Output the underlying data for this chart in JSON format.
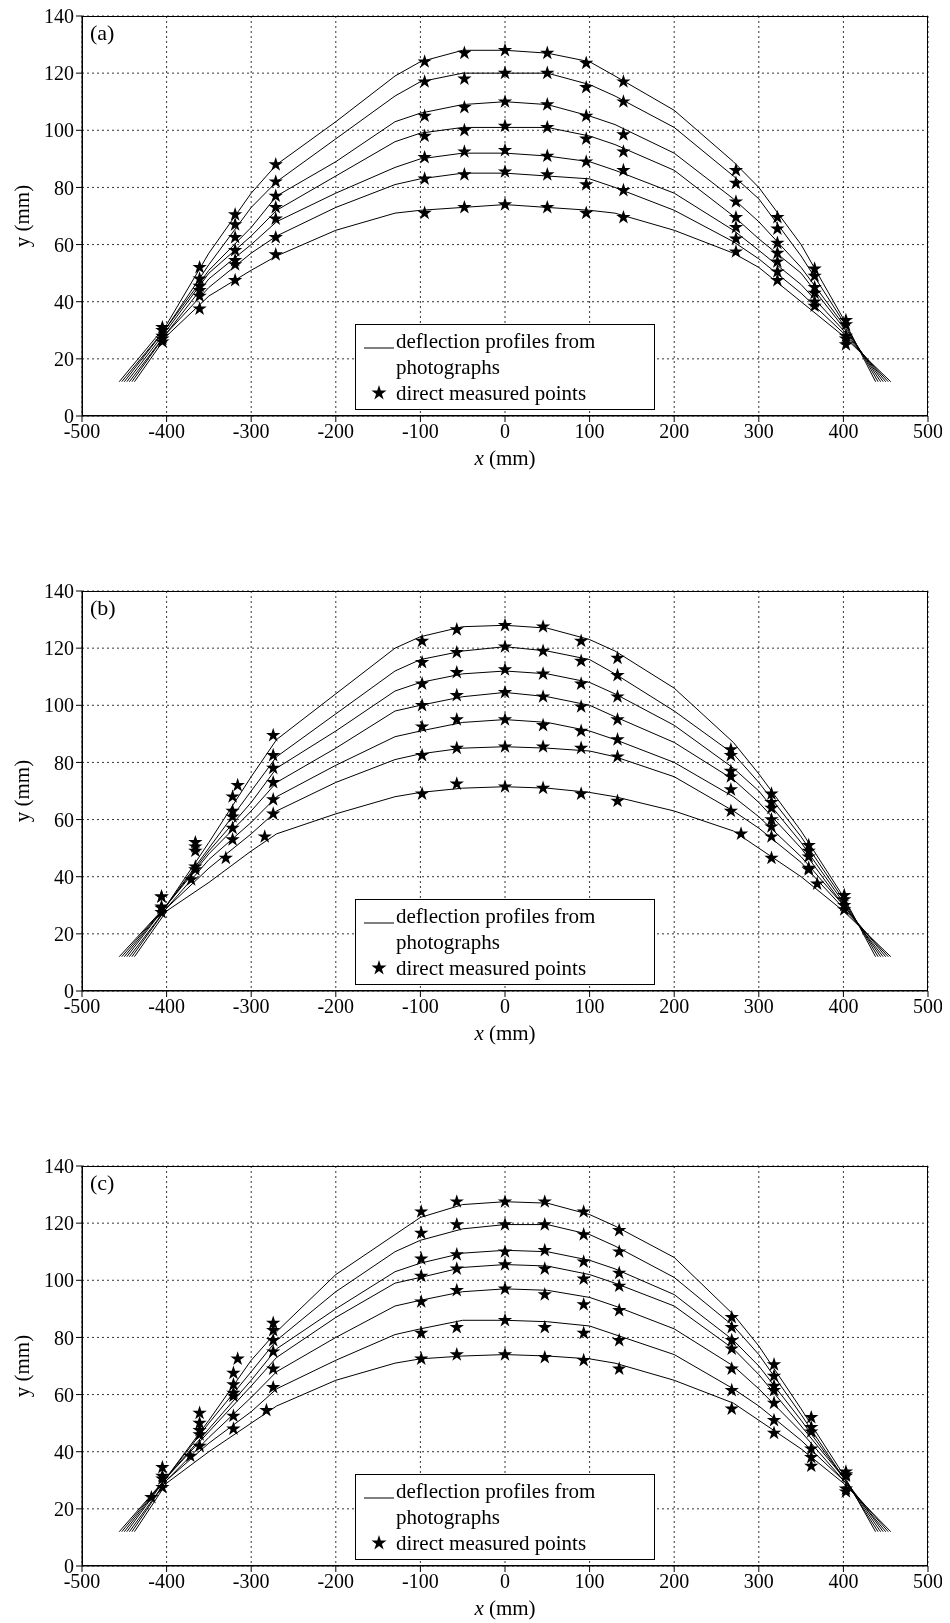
{
  "chart_data": [
    {
      "type": "line",
      "title": "(a)",
      "xlabel": "x (mm)",
      "ylabel": "y (mm)",
      "xlim": [
        -500,
        500
      ],
      "xticks": [
        -500,
        -400,
        -300,
        -200,
        -100,
        0,
        100,
        200,
        300,
        400,
        500
      ],
      "ylim": [
        0,
        140
      ],
      "yticks": [
        0,
        20,
        40,
        60,
        80,
        100,
        120,
        140
      ],
      "grid": true,
      "legend": "bottom",
      "series": [
        {
          "name": "deflection profiles from photographs",
          "color": "#000000",
          "line_style": "solid",
          "x": [
            -456,
            -400,
            -350,
            -300,
            -270,
            -200,
            -130,
            -100,
            -50,
            0,
            50,
            100,
            130,
            200,
            270,
            300,
            350,
            400,
            438
          ],
          "values": [
            12,
            32,
            57,
            78,
            88,
            103,
            119,
            124,
            128,
            128,
            127,
            124,
            119,
            107,
            89,
            80,
            60,
            34,
            12
          ]
        },
        {
          "color": "#000000",
          "line_style": "solid",
          "x": [
            -453,
            -400,
            -350,
            -300,
            -270,
            -200,
            -130,
            -100,
            -50,
            0,
            50,
            100,
            130,
            200,
            270,
            300,
            350,
            400,
            441
          ],
          "values": [
            12,
            31,
            53,
            73,
            82,
            97,
            112,
            117,
            120,
            120,
            120,
            116,
            112,
            101,
            84,
            76,
            56,
            33,
            12
          ]
        },
        {
          "color": "#000000",
          "line_style": "solid",
          "x": [
            -450,
            -400,
            -350,
            -300,
            -270,
            -200,
            -130,
            -100,
            -50,
            0,
            50,
            100,
            130,
            200,
            270,
            300,
            350,
            400,
            444
          ],
          "values": [
            12,
            31,
            51,
            66,
            77,
            89,
            103,
            106,
            109,
            110,
            109,
            105,
            102,
            92,
            76,
            68,
            52,
            32,
            12
          ]
        },
        {
          "color": "#000000",
          "line_style": "solid",
          "x": [
            -447,
            -400,
            -350,
            -300,
            -270,
            -200,
            -130,
            -100,
            -50,
            0,
            50,
            100,
            130,
            200,
            270,
            300,
            350,
            400,
            447
          ],
          "values": [
            12,
            30,
            50,
            63,
            72,
            84,
            96,
            99,
            101,
            101,
            101,
            98,
            95,
            86,
            70,
            62,
            50,
            31,
            12
          ]
        },
        {
          "color": "#000000",
          "line_style": "solid",
          "x": [
            -444,
            -400,
            -350,
            -300,
            -270,
            -200,
            -130,
            -100,
            -50,
            0,
            50,
            100,
            130,
            200,
            270,
            300,
            350,
            400,
            450
          ],
          "values": [
            12,
            29,
            48,
            60,
            68,
            78,
            87,
            90,
            92,
            92,
            91,
            89,
            86,
            78,
            65,
            58,
            46,
            30,
            12
          ]
        },
        {
          "color": "#000000",
          "line_style": "solid",
          "x": [
            -441,
            -400,
            -350,
            -300,
            -270,
            -200,
            -130,
            -100,
            -50,
            0,
            50,
            100,
            130,
            200,
            270,
            300,
            350,
            400,
            453
          ],
          "values": [
            12,
            29,
            45,
            57,
            63,
            73,
            81,
            83,
            85,
            85,
            84,
            83,
            80,
            72,
            61,
            55,
            43,
            29,
            12
          ]
        },
        {
          "color": "#000000",
          "line_style": "solid",
          "x": [
            -438,
            -400,
            -350,
            -300,
            -270,
            -200,
            -130,
            -100,
            -50,
            0,
            50,
            100,
            130,
            200,
            270,
            300,
            350,
            400,
            456
          ],
          "values": [
            12,
            28,
            42,
            51,
            56,
            65,
            71,
            72,
            73,
            74,
            73,
            72,
            71,
            65,
            57,
            52,
            40,
            28,
            12
          ]
        },
        {
          "name": "direct measured points",
          "type": "scatter",
          "marker": "star",
          "color": "#000000",
          "x": [
            -95,
            -95,
            -95,
            -95,
            -95,
            -95,
            -95,
            -48,
            -48,
            -48,
            -48,
            -48,
            -48,
            -48,
            0,
            0,
            0,
            0,
            0,
            0,
            0,
            50,
            50,
            50,
            50,
            50,
            50,
            50,
            96,
            96,
            96,
            96,
            96,
            96,
            96,
            140,
            140,
            140,
            140,
            140,
            140,
            140,
            -271,
            -271,
            -271,
            -271,
            -271,
            -271,
            -271,
            -319,
            -319,
            -319,
            -319,
            -319,
            -319,
            -319,
            -361,
            -361,
            -361,
            -361,
            -361,
            -361,
            -405,
            -405,
            -405,
            -405,
            -405,
            273,
            273,
            273,
            273,
            273,
            273,
            273,
            322,
            322,
            322,
            322,
            322,
            322,
            322,
            366,
            366,
            366,
            366,
            366,
            366,
            403,
            403,
            403,
            403,
            403
          ],
          "values": [
            124,
            117,
            105,
            98,
            90.5,
            83,
            71,
            127,
            118,
            108,
            100,
            92.5,
            84.5,
            73,
            128,
            120,
            110,
            101.5,
            93,
            85.5,
            74,
            127,
            120,
            109,
            101,
            91,
            84.5,
            73,
            123.5,
            115,
            105,
            97,
            89,
            81,
            71,
            117,
            110,
            98.5,
            92.5,
            86,
            79,
            69.5,
            88,
            82,
            77,
            73,
            69,
            62.5,
            56.5,
            70.5,
            67,
            62.5,
            58,
            54.5,
            53,
            47.5,
            52,
            48,
            45.5,
            44,
            42,
            37.5,
            31,
            30,
            28,
            27,
            26,
            86,
            81.5,
            75,
            69.5,
            66,
            62,
            57.5,
            69.5,
            65.5,
            60.5,
            57,
            54,
            50.5,
            47.5,
            51.5,
            49,
            45,
            43,
            40,
            38.5,
            33.5,
            32,
            28,
            27,
            25
          ]
        }
      ]
    },
    {
      "type": "line",
      "title": "(b)",
      "xlabel": "x (mm)",
      "ylabel": "y (mm)",
      "xlim": [
        -500,
        500
      ],
      "xticks": [
        -500,
        -400,
        -300,
        -200,
        -100,
        0,
        100,
        200,
        300,
        400,
        500
      ],
      "ylim": [
        0,
        140
      ],
      "yticks": [
        0,
        20,
        40,
        60,
        80,
        100,
        120,
        140
      ],
      "grid": true,
      "legend": "bottom",
      "series": [
        {
          "name": "deflection profiles from photographs",
          "color": "#000000",
          "line_style": "solid",
          "x": [
            -456,
            -400,
            -350,
            -300,
            -270,
            -200,
            -130,
            -100,
            -50,
            0,
            50,
            100,
            130,
            200,
            270,
            300,
            350,
            400,
            438
          ],
          "values": [
            12,
            30,
            52,
            75,
            88,
            104,
            120,
            124,
            127.5,
            128,
            127,
            123,
            119,
            106,
            87,
            76,
            56,
            33,
            12
          ]
        },
        {
          "color": "#000000",
          "line_style": "solid",
          "x": [
            -453,
            -400,
            -350,
            -300,
            -270,
            -200,
            -130,
            -100,
            -50,
            0,
            50,
            100,
            130,
            200,
            270,
            300,
            350,
            400,
            441
          ],
          "values": [
            12,
            30,
            50,
            70,
            82,
            97,
            112,
            116,
            119,
            120.5,
            119,
            116,
            111,
            98,
            83,
            73,
            54,
            32,
            12
          ]
        },
        {
          "color": "#000000",
          "line_style": "solid",
          "x": [
            -450,
            -400,
            -350,
            -300,
            -270,
            -200,
            -130,
            -100,
            -50,
            0,
            50,
            100,
            130,
            200,
            270,
            300,
            350,
            400,
            444
          ],
          "values": [
            12,
            30,
            49,
            66,
            78,
            91,
            105,
            108,
            111,
            112,
            111,
            108,
            104,
            93,
            78,
            70,
            52,
            31,
            12
          ]
        },
        {
          "color": "#000000",
          "line_style": "solid",
          "x": [
            -447,
            -400,
            -350,
            -300,
            -270,
            -200,
            -130,
            -100,
            -50,
            0,
            50,
            100,
            130,
            200,
            270,
            300,
            350,
            400,
            447
          ],
          "values": [
            12,
            30,
            48,
            63,
            73,
            85,
            98,
            100,
            103,
            104.5,
            103,
            100,
            96,
            87,
            74,
            66,
            50,
            30,
            12
          ]
        },
        {
          "color": "#000000",
          "line_style": "solid",
          "x": [
            -444,
            -400,
            -350,
            -300,
            -270,
            -200,
            -130,
            -100,
            -50,
            0,
            50,
            100,
            130,
            200,
            270,
            300,
            350,
            400,
            450
          ],
          "values": [
            12,
            29,
            46,
            59,
            68,
            79,
            89,
            91,
            94,
            95,
            94,
            91,
            88,
            80,
            68,
            61,
            47,
            30,
            12
          ]
        },
        {
          "color": "#000000",
          "line_style": "solid",
          "x": [
            -441,
            -400,
            -350,
            -300,
            -270,
            -200,
            -130,
            -100,
            -50,
            0,
            50,
            100,
            130,
            200,
            270,
            300,
            350,
            400,
            453
          ],
          "values": [
            12,
            29,
            43,
            55,
            63,
            73,
            81,
            83,
            85,
            85.5,
            85,
            84,
            82,
            75,
            63,
            57,
            45,
            29,
            12
          ]
        },
        {
          "color": "#000000",
          "line_style": "solid",
          "x": [
            -438,
            -400,
            -350,
            -300,
            -270,
            -200,
            -130,
            -100,
            -50,
            0,
            50,
            100,
            130,
            200,
            270,
            300,
            350,
            400,
            456
          ],
          "values": [
            12,
            28,
            38,
            49,
            55,
            62,
            68,
            69.5,
            71,
            71.5,
            71,
            69.5,
            68,
            63,
            56,
            50,
            40,
            28,
            12
          ]
        },
        {
          "name": "direct measured points",
          "type": "scatter",
          "marker": "star",
          "color": "#000000",
          "x": [
            -98,
            -98,
            -98,
            -98,
            -98,
            -98,
            -98,
            -57,
            -57,
            -57,
            -57,
            -57,
            -57,
            -57,
            0,
            0,
            0,
            0,
            0,
            0,
            0,
            45,
            45,
            45,
            45,
            45,
            45,
            45,
            90,
            90,
            90,
            90,
            90,
            90,
            90,
            133,
            133,
            133,
            133,
            133,
            133,
            133,
            -274,
            -274,
            -274,
            -274,
            -274,
            -274,
            -284,
            -316,
            -322,
            -322,
            -322,
            -322,
            -322,
            -330,
            -366,
            -366,
            -366,
            -366,
            -366,
            -371,
            -406,
            -406,
            -406,
            -406,
            -406,
            267,
            267,
            267,
            267,
            267,
            267,
            279,
            315,
            315,
            315,
            315,
            315,
            315,
            315,
            359,
            359,
            359,
            359,
            359,
            369,
            401,
            401,
            401,
            401
          ],
          "values": [
            122.5,
            115,
            107.5,
            100,
            92.5,
            82.5,
            69,
            126.5,
            118.5,
            111.5,
            103.5,
            95,
            85,
            72.5,
            128,
            120.5,
            112.5,
            104.5,
            95,
            85.5,
            71.5,
            127.5,
            119,
            111,
            103,
            93,
            85.5,
            71,
            122.5,
            115.5,
            107.5,
            99.5,
            91,
            85,
            69,
            116.5,
            110.5,
            103,
            95,
            88,
            82,
            66.5,
            89.5,
            82.5,
            78,
            73,
            67,
            62,
            54,
            72,
            68,
            63,
            61,
            57,
            53,
            46.5,
            52,
            50.5,
            49,
            43.5,
            42.5,
            39,
            33,
            33,
            29.5,
            29,
            27.5,
            84.5,
            82.5,
            77,
            75,
            70.5,
            63,
            55,
            69,
            66,
            64,
            60,
            57.5,
            54,
            46.5,
            51,
            49,
            47,
            43,
            42.5,
            37.5,
            33.5,
            32,
            30,
            28.5
          ]
        }
      ]
    },
    {
      "type": "line",
      "title": "(c)",
      "xlabel": "x (mm)",
      "ylabel": "y (mm)",
      "xlim": [
        -500,
        500
      ],
      "xticks": [
        -500,
        -400,
        -300,
        -200,
        -100,
        0,
        100,
        200,
        300,
        400,
        500
      ],
      "ylim": [
        0,
        140
      ],
      "yticks": [
        0,
        20,
        40,
        60,
        80,
        100,
        120,
        140
      ],
      "grid": true,
      "legend": "bottom",
      "series": [
        {
          "name": "deflection profiles from photographs",
          "color": "#000000",
          "line_style": "solid",
          "x": [
            -456,
            -400,
            -350,
            -300,
            -270,
            -200,
            -130,
            -100,
            -50,
            0,
            50,
            100,
            130,
            200,
            270,
            300,
            350,
            400,
            438
          ],
          "values": [
            12,
            31,
            51,
            72,
            82,
            102,
            116,
            122,
            126.5,
            127.5,
            127,
            123,
            119,
            108,
            88,
            77,
            55,
            32,
            12
          ]
        },
        {
          "color": "#000000",
          "line_style": "solid",
          "x": [
            -453,
            -400,
            -350,
            -300,
            -270,
            -200,
            -130,
            -100,
            -50,
            0,
            50,
            100,
            130,
            200,
            270,
            300,
            350,
            400,
            441
          ],
          "values": [
            12,
            31,
            50,
            68,
            79,
            96,
            110,
            114,
            118,
            119.5,
            119.5,
            116,
            112,
            101,
            84,
            74,
            53,
            31,
            12
          ]
        },
        {
          "color": "#000000",
          "line_style": "solid",
          "x": [
            -450,
            -400,
            -350,
            -300,
            -270,
            -200,
            -130,
            -100,
            -50,
            0,
            50,
            100,
            130,
            200,
            270,
            300,
            350,
            400,
            444
          ],
          "values": [
            12,
            31,
            48,
            65,
            76,
            90,
            103,
            106,
            109.5,
            110.5,
            110,
            107,
            104,
            95,
            79,
            70,
            51,
            31,
            12
          ]
        },
        {
          "color": "#000000",
          "line_style": "solid",
          "x": [
            -447,
            -400,
            -350,
            -300,
            -270,
            -200,
            -130,
            -100,
            -50,
            0,
            50,
            100,
            130,
            200,
            270,
            300,
            350,
            400,
            447
          ],
          "values": [
            12,
            31,
            47,
            63,
            73,
            87,
            99,
            101,
            104.5,
            105.5,
            105,
            102,
            99,
            91,
            76,
            67,
            49,
            31,
            12
          ]
        },
        {
          "color": "#000000",
          "line_style": "solid",
          "x": [
            -444,
            -400,
            -350,
            -300,
            -270,
            -200,
            -130,
            -100,
            -50,
            0,
            50,
            100,
            130,
            200,
            270,
            300,
            350,
            400,
            450
          ],
          "values": [
            12,
            30,
            45,
            59,
            68,
            80,
            91,
            93,
            96,
            97,
            96.5,
            94,
            91,
            83,
            70,
            62,
            47,
            30,
            12
          ]
        },
        {
          "color": "#000000",
          "line_style": "solid",
          "x": [
            -441,
            -400,
            -350,
            -300,
            -270,
            -200,
            -130,
            -100,
            -50,
            0,
            50,
            100,
            130,
            200,
            270,
            300,
            350,
            400,
            453
          ],
          "values": [
            12,
            30,
            43,
            54,
            62,
            72,
            81,
            83,
            86,
            86,
            85.5,
            84,
            81,
            74,
            62,
            56,
            44,
            30,
            12
          ]
        },
        {
          "color": "#000000",
          "line_style": "solid",
          "x": [
            -438,
            -400,
            -350,
            -300,
            -270,
            -200,
            -130,
            -100,
            -50,
            0,
            50,
            100,
            130,
            200,
            270,
            300,
            350,
            400,
            456
          ],
          "values": [
            12,
            29,
            40,
            50,
            56,
            65,
            71,
            72.5,
            73.5,
            74,
            73.5,
            72.5,
            71,
            65,
            57,
            51,
            41,
            29,
            12
          ]
        },
        {
          "name": "direct measured points",
          "type": "scatter",
          "marker": "star",
          "color": "#000000",
          "x": [
            -99,
            -99,
            -99,
            -99,
            -99,
            -99,
            -99,
            -57,
            -57,
            -57,
            -57,
            -57,
            -57,
            -57,
            0,
            0,
            0,
            0,
            0,
            0,
            0,
            47,
            47,
            47,
            47,
            47,
            47,
            47,
            93,
            93,
            93,
            93,
            93,
            93,
            93,
            135,
            135,
            135,
            135,
            135,
            135,
            135,
            -274,
            -274,
            -274,
            -274,
            -274,
            -274,
            -282,
            -316,
            -321,
            -321,
            -321,
            -321,
            -321,
            -321,
            -361,
            -361,
            -361,
            -361,
            -361,
            -372,
            -405,
            -405,
            -405,
            -405,
            -418,
            268,
            268,
            268,
            268,
            268,
            268,
            268,
            318,
            318,
            318,
            318,
            318,
            318,
            318,
            362,
            362,
            362,
            362,
            362,
            362,
            403,
            403,
            403,
            403,
            403
          ],
          "values": [
            124,
            116.5,
            107.5,
            101.5,
            92.5,
            81.5,
            72.5,
            127.5,
            119.5,
            109,
            104,
            96.5,
            83.5,
            74,
            127.5,
            119.5,
            110,
            105.5,
            97,
            86,
            74,
            127.5,
            119.5,
            110.5,
            104,
            95,
            83.5,
            73,
            124,
            116,
            106.5,
            100.5,
            91.5,
            81.5,
            72,
            117.5,
            110,
            102.5,
            98,
            89.5,
            79,
            69,
            85,
            82.5,
            79,
            75,
            69,
            62.5,
            54.5,
            72.5,
            67.5,
            63.5,
            60.5,
            59.5,
            52.5,
            48,
            53.5,
            50,
            47.5,
            46,
            42,
            38.5,
            34.5,
            31.5,
            30.5,
            27.5,
            24,
            87,
            83.5,
            79,
            76,
            69,
            61.5,
            55,
            70.5,
            66.5,
            63,
            61.5,
            57,
            51,
            46.5,
            52,
            48.5,
            47,
            41,
            38,
            35,
            33,
            32,
            31.5,
            27,
            26
          ]
        }
      ]
    }
  ]
}
